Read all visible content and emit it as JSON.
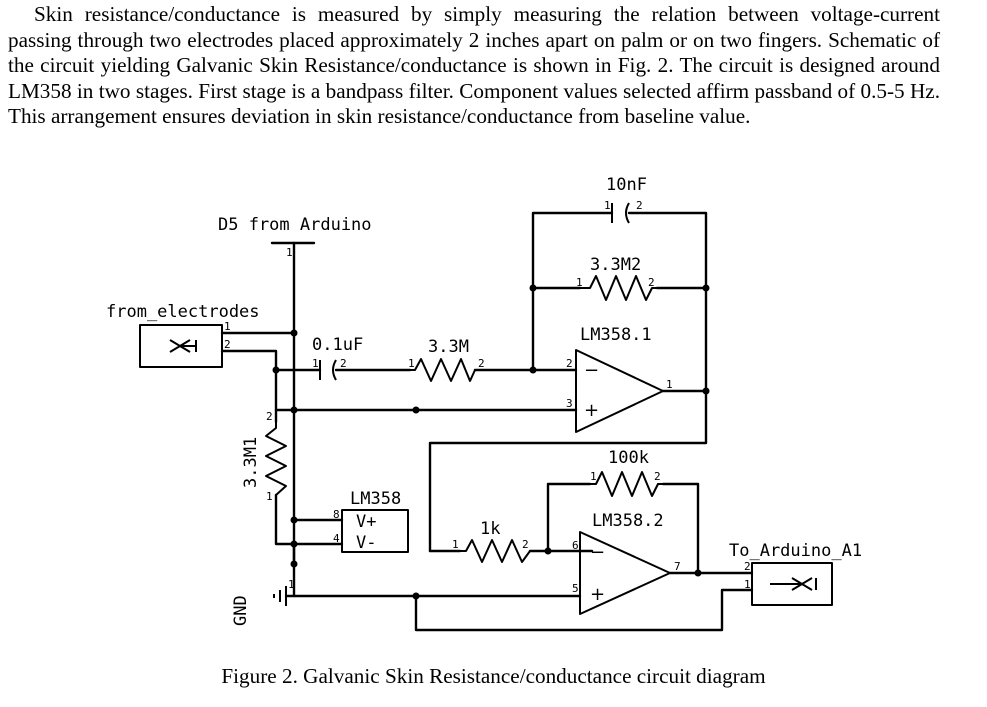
{
  "paragraph": "Skin resistance/conductance is measured by simply measuring the relation between voltage-current passing through two electrodes placed approximately 2 inches apart on palm or on two fingers. Schematic of the circuit yielding Galvanic Skin Resistance/conductance is shown in Fig. 2. The circuit is designed around LM358 in two stages. First stage is a bandpass filter. Component values selected affirm passband of 0.5-5 Hz. This arrangement ensures deviation in skin resistance/conductance from baseline value.",
  "caption": "Figure 2.  Galvanic Skin Resistance/conductance circuit diagram",
  "schematic": {
    "labels": {
      "d5": "D5 from Arduino",
      "from_electrodes": "from_electrodes",
      "c1": "10nF",
      "r_fb1": "3.3M2",
      "opamp1": "LM358.1",
      "c_in": "0.1uF",
      "r_in": "3.3M",
      "r_fb2": "100k",
      "opamp2": "LM358.2",
      "r_1k": "1k",
      "r_bias": "3.3M1",
      "power": "LM358",
      "vplus": "V+",
      "vminus": "V-",
      "gnd": "GND",
      "out": "To_Arduino_A1"
    },
    "pins": {
      "p1": "1",
      "p2": "2",
      "p3": "3",
      "p4": "4",
      "p5": "5",
      "p6": "6",
      "p7": "7",
      "p8": "8"
    },
    "signs": {
      "minus": "−",
      "plus": "+"
    }
  }
}
